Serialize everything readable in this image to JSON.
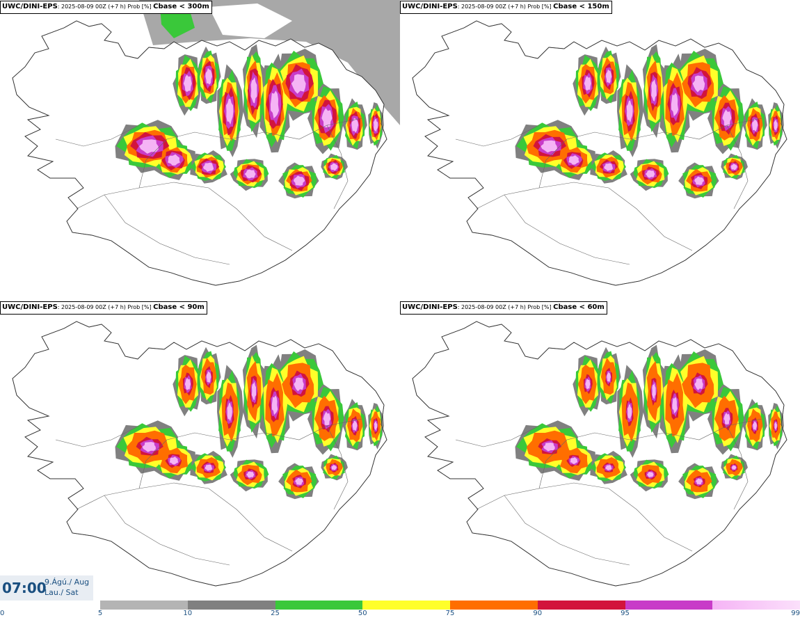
{
  "panels": [
    {
      "model": "UWC/DINI-EPS",
      "meta": ": 2025-08-09 00Z (+7 h) Prob [%] ",
      "param": "Cbase < 300m",
      "level": "300"
    },
    {
      "model": "UWC/DINI-EPS",
      "meta": ": 2025-08-09 00Z (+7 h) Prob [%] ",
      "param": "Cbase < 150m",
      "level": "150"
    },
    {
      "model": "UWC/DINI-EPS",
      "meta": ": 2025-08-09 00Z (+7 h) Prob [%] ",
      "param": "Cbase < 90m",
      "level": "90"
    },
    {
      "model": "UWC/DINI-EPS",
      "meta": ": 2025-08-09 00Z (+7 h) Prob [%] ",
      "param": "Cbase < 60m",
      "level": "60"
    }
  ],
  "time": {
    "clock": "07:00",
    "date_line1": "9.Ágú./ Aug",
    "date_line2": "Lau./ Sat"
  },
  "legend": {
    "ticks": [
      "0",
      "5",
      "10",
      "25",
      "50",
      "75",
      "90",
      "95",
      "99"
    ],
    "colors": [
      "#b4b4b4",
      "#808080",
      "#3ac83a",
      "#ffff2a",
      "#ff6e00",
      "#d2143c",
      "#c83cc8",
      "#f5b4f5"
    ]
  }
}
